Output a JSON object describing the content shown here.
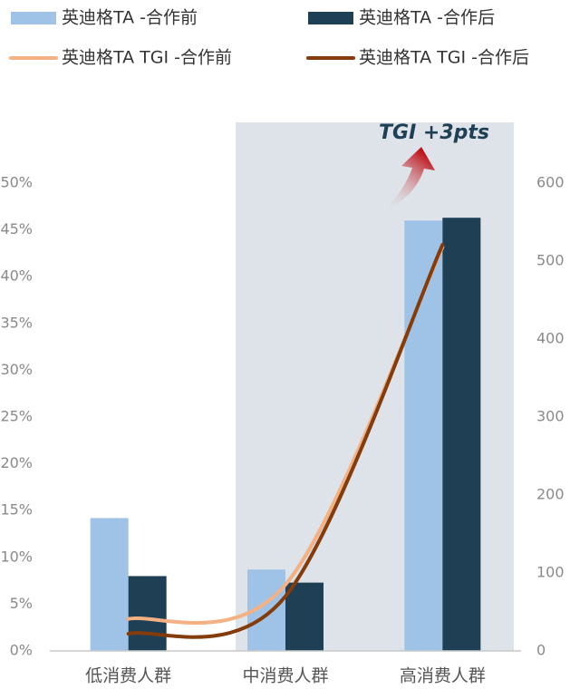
{
  "chart_data": {
    "type": "bar_line",
    "annotation": "TGI +3pts",
    "categories": [
      "低消费人群",
      "中消费人群",
      "高消费人群"
    ],
    "series": [
      {
        "name": "英迪格TA -合作前",
        "color": "#9fc3e6",
        "type": "bar",
        "values": [
          14.2,
          8.7,
          46.0
        ]
      },
      {
        "name": "英迪格TA -合作后",
        "color": "#1f3f55",
        "type": "bar",
        "values": [
          8.0,
          7.3,
          46.3
        ]
      },
      {
        "name": "英迪格TA TGI -合作前",
        "color": "#f4b183",
        "type": "line",
        "axis": "y2",
        "values": [
          41,
          85,
          518
        ]
      },
      {
        "name": "英迪格TA TGI -合作后",
        "color": "#843c0c",
        "type": "line",
        "axis": "y2",
        "values": [
          22,
          70,
          521
        ]
      }
    ],
    "ylim": [
      0,
      50
    ],
    "yticks": [
      {
        "value": 0,
        "label": "0%"
      },
      {
        "value": 5,
        "label": "5%"
      },
      {
        "value": 10,
        "label": "10%"
      },
      {
        "value": 15,
        "label": "15%"
      },
      {
        "value": 20,
        "label": "20%"
      },
      {
        "value": 25,
        "label": "25%"
      },
      {
        "value": 30,
        "label": "30%"
      },
      {
        "value": 35,
        "label": "35%"
      },
      {
        "value": 40,
        "label": "40%"
      },
      {
        "value": 45,
        "label": "45%"
      },
      {
        "value": 50,
        "label": "50%"
      }
    ],
    "y2lim": [
      0,
      600
    ],
    "y2ticks": [
      0,
      100,
      200,
      300,
      400,
      500,
      600
    ]
  }
}
